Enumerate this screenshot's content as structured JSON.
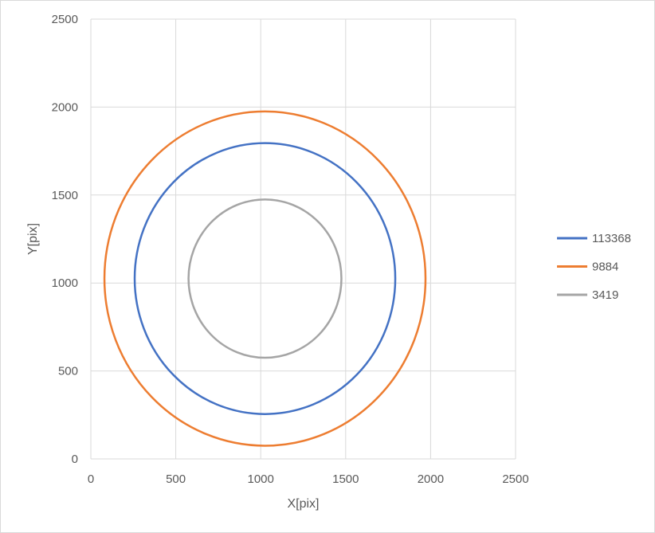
{
  "chart_data": {
    "type": "scatter",
    "title": "",
    "xlabel": "X[pix]",
    "ylabel": "Y[pix]",
    "xlim": [
      0,
      2500
    ],
    "ylim": [
      0,
      2500
    ],
    "xticks": [
      0,
      500,
      1000,
      1500,
      2000,
      2500
    ],
    "yticks": [
      0,
      500,
      1000,
      1500,
      2000,
      2500
    ],
    "grid": true,
    "legend_position": "right",
    "series": [
      {
        "name": "113368",
        "color": "#4472c4",
        "shape": "ellipse",
        "center": [
          1025,
          1025
        ],
        "radius_x": 767,
        "radius_y": 770
      },
      {
        "name": "9884",
        "color": "#ed7d31",
        "shape": "ellipse",
        "center": [
          1025,
          1025
        ],
        "radius_x": 945,
        "radius_y": 950
      },
      {
        "name": "3419",
        "color": "#a5a5a5",
        "shape": "ellipse",
        "center": [
          1025,
          1025
        ],
        "radius_x": 450,
        "radius_y": 450
      }
    ]
  }
}
